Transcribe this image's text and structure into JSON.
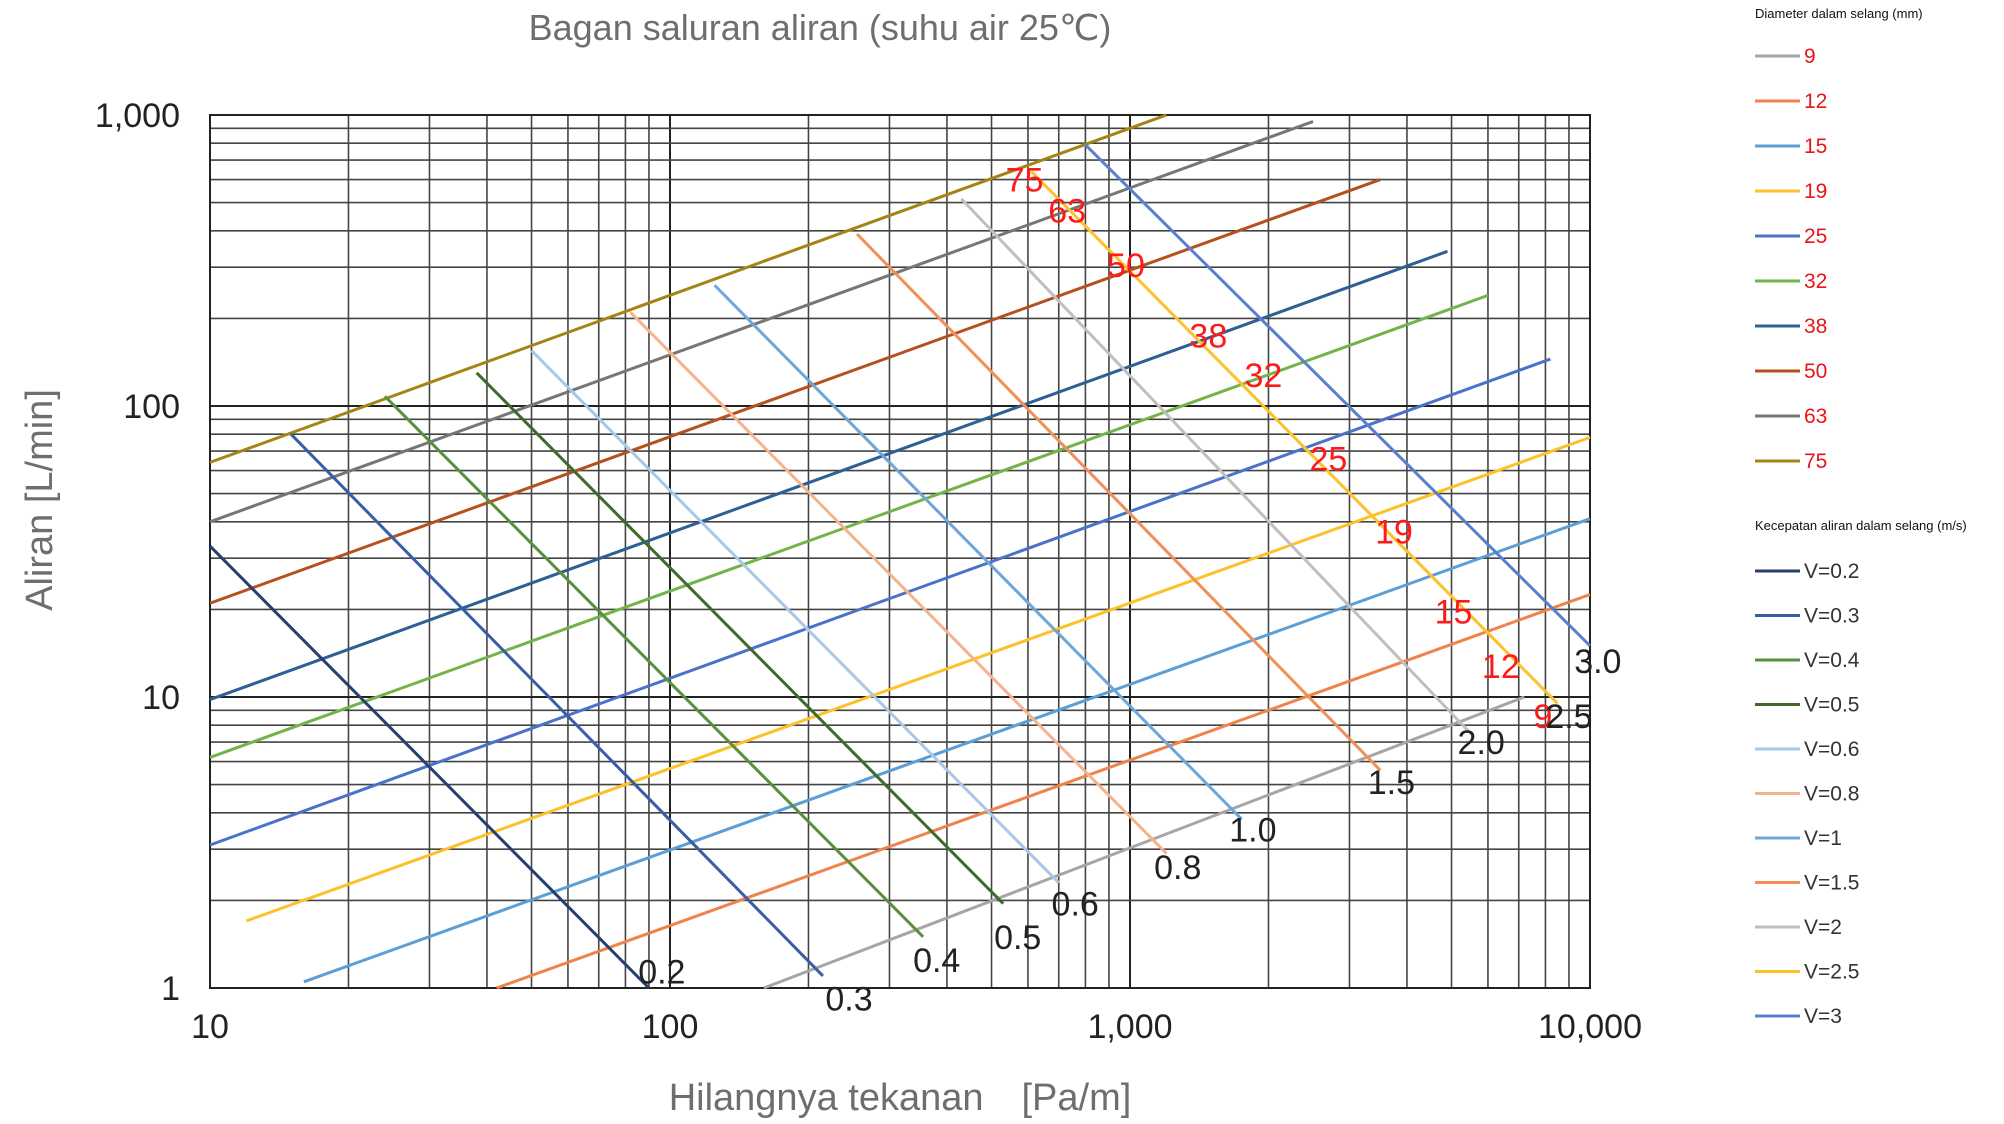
{
  "chart_data": {
    "type": "line",
    "title": "Bagan saluran aliran (suhu air 25℃)",
    "xlabel": "Hilangnya tekanan　[Pa/m]",
    "ylabel": "Aliran [L/min]",
    "x_scale": "log",
    "y_scale": "log",
    "xlim": [
      10,
      10000
    ],
    "ylim": [
      1,
      1000
    ],
    "x_ticks": [
      {
        "value": 10,
        "label": "10"
      },
      {
        "value": 100,
        "label": "100"
      },
      {
        "value": 1000,
        "label": "1,000"
      },
      {
        "value": 10000,
        "label": "10,000"
      }
    ],
    "y_ticks": [
      {
        "value": 1,
        "label": "1"
      },
      {
        "value": 10,
        "label": "10"
      },
      {
        "value": 100,
        "label": "100"
      },
      {
        "value": 1000,
        "label": "1,000"
      }
    ],
    "grid": true,
    "diameter_legend_title": "Diameter dalam selang (mm)",
    "velocity_legend_title": "Kecepatan aliran dalam selang (m/s)",
    "legend_position": "right",
    "diameter_series": [
      {
        "name": "9",
        "label": "9",
        "color": "#a6a6a6",
        "points": [
          [
            160,
            1.0
          ],
          [
            7200,
            10.0
          ]
        ]
      },
      {
        "name": "12",
        "label": "12",
        "color": "#f0834a",
        "points": [
          [
            42,
            1.0
          ],
          [
            10000,
            22.5
          ]
        ]
      },
      {
        "name": "15",
        "label": "15",
        "color": "#5b9fd6",
        "points": [
          [
            16,
            1.05
          ],
          [
            10000,
            41
          ]
        ]
      },
      {
        "name": "19",
        "label": "19",
        "color": "#fdc12a",
        "points": [
          [
            12,
            1.7
          ],
          [
            10000,
            78
          ]
        ]
      },
      {
        "name": "25",
        "label": "25",
        "color": "#4a72c8",
        "points": [
          [
            10,
            3.1
          ],
          [
            8200,
            145
          ]
        ]
      },
      {
        "name": "32",
        "label": "32",
        "color": "#72b34a",
        "points": [
          [
            10,
            6.2
          ],
          [
            6000,
            240
          ]
        ]
      },
      {
        "name": "38",
        "label": "38",
        "color": "#2e5f95",
        "points": [
          [
            10,
            9.8
          ],
          [
            4900,
            340
          ]
        ]
      },
      {
        "name": "50",
        "label": "50",
        "color": "#b5501f",
        "points": [
          [
            10,
            21
          ],
          [
            3500,
            600
          ]
        ]
      },
      {
        "name": "63",
        "label": "63",
        "color": "#767676",
        "points": [
          [
            10,
            40
          ],
          [
            2500,
            950
          ]
        ]
      },
      {
        "name": "75",
        "label": "75",
        "color": "#a58315",
        "points": [
          [
            10,
            64
          ],
          [
            1200,
            1000
          ]
        ]
      }
    ],
    "velocity_series": [
      {
        "name": "V=0.2",
        "label": "0.2",
        "color": "#263f6e",
        "points": [
          [
            10,
            33
          ],
          [
            90,
            1.0
          ]
        ]
      },
      {
        "name": "V=0.3",
        "label": "0.3",
        "color": "#3a5ea6",
        "points": [
          [
            15,
            80
          ],
          [
            215,
            1.1
          ]
        ]
      },
      {
        "name": "V=0.4",
        "label": "0.4",
        "color": "#5b8f3c",
        "points": [
          [
            24,
            108
          ],
          [
            355,
            1.5
          ]
        ]
      },
      {
        "name": "V=0.5",
        "label": "0.5",
        "color": "#3f6a2a",
        "points": [
          [
            38,
            130
          ],
          [
            530,
            1.95
          ]
        ]
      },
      {
        "name": "V=0.6",
        "label": "0.6",
        "color": "#a9c7e6",
        "points": [
          [
            50,
            155
          ],
          [
            700,
            2.3
          ]
        ]
      },
      {
        "name": "V=0.8",
        "label": "0.8",
        "color": "#f5b38c",
        "points": [
          [
            82,
            210
          ],
          [
            1200,
            2.9
          ]
        ]
      },
      {
        "name": "V=1",
        "label": "1.0",
        "color": "#6fa6d9",
        "points": [
          [
            125,
            260
          ],
          [
            1750,
            3.8
          ]
        ]
      },
      {
        "name": "V=1.5",
        "label": "1.5",
        "color": "#f09058",
        "points": [
          [
            255,
            390
          ],
          [
            3500,
            5.6
          ]
        ]
      },
      {
        "name": "V=2",
        "label": "2.0",
        "color": "#bfbfbf",
        "points": [
          [
            430,
            515
          ],
          [
            5500,
            7.5
          ]
        ]
      },
      {
        "name": "V=2.5",
        "label": "2.5",
        "color": "#fdc12a",
        "points": [
          [
            610,
            640
          ],
          [
            8500,
            9.5
          ]
        ]
      },
      {
        "name": "V=3",
        "label": "3.0",
        "color": "#5b7fcf",
        "points": [
          [
            800,
            790
          ],
          [
            10000,
            15
          ]
        ]
      }
    ],
    "diameter_annotations": [
      {
        "text": "75",
        "x": 590,
        "y": 600
      },
      {
        "text": "63",
        "x": 730,
        "y": 470
      },
      {
        "text": "50",
        "x": 980,
        "y": 305
      },
      {
        "text": "38",
        "x": 1480,
        "y": 175
      },
      {
        "text": "32",
        "x": 1950,
        "y": 128
      },
      {
        "text": "25",
        "x": 2700,
        "y": 66
      },
      {
        "text": "19",
        "x": 3750,
        "y": 37
      },
      {
        "text": "15",
        "x": 5050,
        "y": 19.7
      },
      {
        "text": "12",
        "x": 6400,
        "y": 12.8
      },
      {
        "text": "9",
        "x": 7900,
        "y": 8.6
      }
    ],
    "velocity_annotations": [
      {
        "text": "0.2",
        "x": 96,
        "y": 1.14
      },
      {
        "text": "0.3",
        "x": 245,
        "y": 0.92
      },
      {
        "text": "0.4",
        "x": 380,
        "y": 1.25
      },
      {
        "text": "0.5",
        "x": 570,
        "y": 1.5
      },
      {
        "text": "0.6",
        "x": 760,
        "y": 1.95
      },
      {
        "text": "0.8",
        "x": 1270,
        "y": 2.6
      },
      {
        "text": "1.0",
        "x": 1850,
        "y": 3.5
      },
      {
        "text": "1.5",
        "x": 3700,
        "y": 5.1
      },
      {
        "text": "2.0",
        "x": 5800,
        "y": 7.0
      },
      {
        "text": "2.5",
        "x": 9000,
        "y": 8.6
      },
      {
        "text": "3.0",
        "x": 10400,
        "y": 13.3
      }
    ]
  }
}
